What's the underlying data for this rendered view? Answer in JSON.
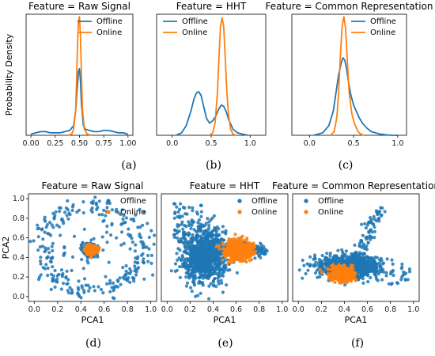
{
  "colors": {
    "offline": "#1f77b4",
    "online": "#ff7f0e"
  },
  "captions": [
    "(a)",
    "(b)",
    "(c)",
    "(d)",
    "(e)",
    "(f)"
  ],
  "chart_data": [
    {
      "type": "line",
      "panel": "a",
      "title": "Feature = Raw Signal",
      "xlabel": "",
      "ylabel": "Probability Density",
      "xlim": [
        -0.05,
        1.05
      ],
      "ylim": [
        0,
        1.0
      ],
      "xticks": [
        "0.00",
        "0.25",
        "0.50",
        "0.75",
        "1.00"
      ],
      "legend": "top-right",
      "series": [
        {
          "name": "Offline",
          "x": [
            0.0,
            0.05,
            0.1,
            0.15,
            0.2,
            0.25,
            0.3,
            0.35,
            0.4,
            0.44,
            0.46,
            0.48,
            0.49,
            0.5,
            0.51,
            0.52,
            0.54,
            0.56,
            0.6,
            0.65,
            0.7,
            0.75,
            0.8,
            0.85,
            0.9,
            0.95,
            1.0
          ],
          "y": [
            0.01,
            0.02,
            0.03,
            0.03,
            0.02,
            0.02,
            0.02,
            0.03,
            0.04,
            0.08,
            0.2,
            0.42,
            0.53,
            0.55,
            0.45,
            0.26,
            0.08,
            0.05,
            0.04,
            0.03,
            0.03,
            0.04,
            0.04,
            0.03,
            0.02,
            0.02,
            0.01
          ]
        },
        {
          "name": "Online",
          "x": [
            0.38,
            0.42,
            0.44,
            0.46,
            0.47,
            0.48,
            0.49,
            0.5,
            0.51,
            0.52,
            0.53,
            0.55,
            0.58,
            0.62
          ],
          "y": [
            0.0,
            0.01,
            0.05,
            0.2,
            0.45,
            0.75,
            0.95,
            0.98,
            0.82,
            0.5,
            0.22,
            0.05,
            0.01,
            0.0
          ]
        }
      ]
    },
    {
      "type": "line",
      "panel": "b",
      "title": "Feature = HHT",
      "xlabel": "",
      "ylabel": "",
      "xlim": [
        -0.2,
        1.2
      ],
      "ylim": [
        0,
        1.0
      ],
      "xticks": [
        "0.0",
        "0.5",
        "1.0"
      ],
      "legend": "top-left",
      "series": [
        {
          "name": "Offline",
          "x": [
            0.05,
            0.12,
            0.18,
            0.24,
            0.28,
            0.31,
            0.34,
            0.37,
            0.4,
            0.44,
            0.48,
            0.52,
            0.56,
            0.6,
            0.63,
            0.66,
            0.69,
            0.73,
            0.78,
            0.84,
            0.9,
            0.97
          ],
          "y": [
            0.0,
            0.02,
            0.08,
            0.2,
            0.3,
            0.35,
            0.36,
            0.33,
            0.25,
            0.14,
            0.1,
            0.12,
            0.16,
            0.22,
            0.25,
            0.24,
            0.2,
            0.12,
            0.05,
            0.02,
            0.01,
            0.0
          ]
        },
        {
          "name": "Online",
          "x": [
            0.48,
            0.52,
            0.55,
            0.58,
            0.6,
            0.62,
            0.64,
            0.66,
            0.68,
            0.7,
            0.72,
            0.75,
            0.78,
            0.82
          ],
          "y": [
            0.0,
            0.02,
            0.1,
            0.35,
            0.65,
            0.9,
            0.97,
            0.9,
            0.65,
            0.38,
            0.18,
            0.05,
            0.01,
            0.0
          ]
        }
      ]
    },
    {
      "type": "line",
      "panel": "c",
      "title": "Feature = Common Representation",
      "xlabel": "",
      "ylabel": "",
      "xlim": [
        -0.2,
        1.1
      ],
      "ylim": [
        0,
        1.0
      ],
      "xticks": [
        "0.0",
        "0.5",
        "1.0"
      ],
      "legend": "top-right",
      "series": [
        {
          "name": "Offline",
          "x": [
            0.05,
            0.15,
            0.22,
            0.27,
            0.3,
            0.33,
            0.36,
            0.38,
            0.4,
            0.42,
            0.44,
            0.47,
            0.5,
            0.53,
            0.56,
            0.6,
            0.65,
            0.7,
            0.8,
            0.92,
            1.0
          ],
          "y": [
            0.0,
            0.02,
            0.08,
            0.2,
            0.35,
            0.5,
            0.6,
            0.64,
            0.62,
            0.55,
            0.45,
            0.33,
            0.25,
            0.2,
            0.15,
            0.1,
            0.06,
            0.03,
            0.01,
            0.0,
            0.0
          ]
        },
        {
          "name": "Online",
          "x": [
            0.24,
            0.28,
            0.31,
            0.33,
            0.35,
            0.37,
            0.39,
            0.41,
            0.43,
            0.45,
            0.48,
            0.5,
            0.52,
            0.55,
            0.58,
            0.62
          ],
          "y": [
            0.0,
            0.03,
            0.15,
            0.35,
            0.65,
            0.9,
            0.98,
            0.88,
            0.6,
            0.35,
            0.18,
            0.12,
            0.08,
            0.03,
            0.01,
            0.0
          ]
        }
      ]
    },
    {
      "type": "scatter",
      "panel": "d",
      "title": "Feature = Raw Signal",
      "xlabel": "PCA1",
      "ylabel": "PCA2",
      "xlim": [
        -0.05,
        1.05
      ],
      "ylim": [
        -0.05,
        1.05
      ],
      "xticks": [
        "0.0",
        "0.2",
        "0.4",
        "0.6",
        "0.8",
        "1.0"
      ],
      "yticks": [
        "0.0",
        "0.2",
        "0.4",
        "0.6",
        "0.8",
        "1.0"
      ],
      "legend": "top-right",
      "series": [
        {
          "name": "Offline",
          "distribution": {
            "ring": {
              "center": [
                0.5,
                0.5
              ],
              "radius": 0.44,
              "n": 260
            },
            "core": {
              "center": [
                0.48,
                0.48
              ],
              "sd": 0.035,
              "n": 160
            }
          }
        },
        {
          "name": "Online",
          "distribution": {
            "center": [
              0.49,
              0.48
            ],
            "sd": 0.025,
            "n": 320
          }
        }
      ]
    },
    {
      "type": "scatter",
      "panel": "e",
      "title": "Feature = HHT",
      "xlabel": "PCA1",
      "ylabel": "",
      "xlim": [
        -0.05,
        1.05
      ],
      "ylim": [
        -0.05,
        1.05
      ],
      "xticks": [
        "0.0",
        "0.2",
        "0.4",
        "0.6",
        "0.8",
        "1.0"
      ],
      "legend": "top-right",
      "series": [
        {
          "name": "Offline",
          "distribution": {
            "center": [
              0.33,
              0.42
            ],
            "sd": [
              0.1,
              0.14
            ],
            "tail": {
              "from": [
                0.55,
                0.5
              ],
              "to": [
                0.85,
                0.47
              ]
            },
            "n": 900
          }
        },
        {
          "name": "Online",
          "distribution": {
            "center": [
              0.62,
              0.47
            ],
            "sd": [
              0.06,
              0.05
            ],
            "n": 450
          }
        }
      ]
    },
    {
      "type": "scatter",
      "panel": "f",
      "title": "Feature = Common Representation",
      "xlabel": "PCA1",
      "ylabel": "",
      "xlim": [
        -0.05,
        1.05
      ],
      "ylim": [
        -0.05,
        1.05
      ],
      "xticks": [
        "0.0",
        "0.2",
        "0.4",
        "0.6",
        "0.8",
        "1.0"
      ],
      "legend": "top-left",
      "series": [
        {
          "name": "Offline",
          "distribution": {
            "center": [
              0.42,
              0.3
            ],
            "sd": [
              0.13,
              0.06
            ],
            "spike": {
              "from": [
                0.5,
                0.35
              ],
              "to": [
                0.7,
                0.9
              ]
            },
            "n": 800
          }
        },
        {
          "name": "Online",
          "distribution": {
            "center": [
              0.38,
              0.23
            ],
            "sd": [
              0.05,
              0.04
            ],
            "n": 420
          }
        }
      ]
    }
  ]
}
